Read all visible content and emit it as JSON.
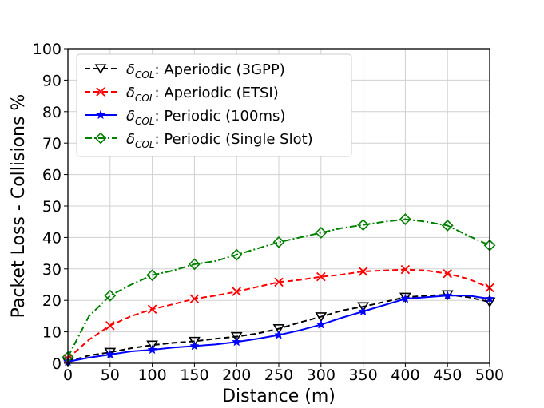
{
  "chart_data": {
    "type": "line",
    "title": "",
    "xlabel": "Distance (m)",
    "ylabel": "Packet Loss - Collisions %",
    "xlim": [
      0,
      500
    ],
    "ylim": [
      0,
      100
    ],
    "xticks": [
      0,
      50,
      100,
      150,
      200,
      250,
      300,
      350,
      400,
      450,
      500
    ],
    "yticks": [
      0,
      10,
      20,
      30,
      40,
      50,
      60,
      70,
      80,
      90,
      100
    ],
    "grid": true,
    "legend_position": "top-left",
    "series": [
      {
        "name": "Aperiodic (3GPP)",
        "legend_symbol": "δ",
        "legend_subscript": "COL",
        "color": "#000000",
        "line_style": "dashed",
        "marker": "triangle-down",
        "x": [
          0,
          25,
          50,
          75,
          100,
          125,
          150,
          175,
          200,
          225,
          250,
          275,
          300,
          325,
          350,
          375,
          400,
          425,
          450,
          475,
          500
        ],
        "values": [
          0.5,
          2.5,
          3.5,
          4.8,
          5.8,
          6.5,
          7.0,
          7.8,
          8.5,
          9.5,
          11.0,
          13.0,
          14.8,
          16.8,
          18.0,
          19.5,
          21.0,
          21.5,
          21.8,
          21.0,
          19.5
        ],
        "marker_x": [
          0,
          50,
          100,
          150,
          200,
          250,
          300,
          350,
          400,
          450,
          500
        ]
      },
      {
        "name": "Aperiodic (ETSI)",
        "legend_symbol": "δ",
        "legend_subscript": "COL",
        "color": "#ff0000",
        "line_style": "dashed",
        "marker": "x",
        "x": [
          0,
          25,
          50,
          75,
          100,
          125,
          150,
          175,
          200,
          225,
          250,
          275,
          300,
          325,
          350,
          375,
          400,
          425,
          450,
          475,
          500
        ],
        "values": [
          1.5,
          7.5,
          12.0,
          15.0,
          17.2,
          18.8,
          20.5,
          21.5,
          22.8,
          24.3,
          25.8,
          26.5,
          27.5,
          28.2,
          29.2,
          29.5,
          29.8,
          29.5,
          28.5,
          26.8,
          24.0
        ],
        "marker_x": [
          0,
          50,
          100,
          150,
          200,
          250,
          300,
          350,
          400,
          450,
          500
        ]
      },
      {
        "name": "Periodic (100ms)",
        "legend_symbol": "δ",
        "legend_subscript": "COL",
        "color": "#0000ff",
        "line_style": "solid",
        "marker": "star",
        "x": [
          0,
          25,
          50,
          75,
          100,
          125,
          150,
          175,
          200,
          225,
          250,
          275,
          300,
          325,
          350,
          375,
          400,
          425,
          450,
          475,
          500
        ],
        "values": [
          0.5,
          1.8,
          2.8,
          3.8,
          4.3,
          5.0,
          5.5,
          6.0,
          6.8,
          7.8,
          9.0,
          10.5,
          12.3,
          14.5,
          16.5,
          18.5,
          20.5,
          21.0,
          21.5,
          21.5,
          20.5
        ],
        "marker_x": [
          0,
          50,
          100,
          150,
          200,
          250,
          300,
          350,
          400,
          450,
          500
        ]
      },
      {
        "name": "Periodic (Single Slot)",
        "legend_symbol": "δ",
        "legend_subscript": "COL",
        "color": "#008000",
        "line_style": "dashdot",
        "marker": "diamond",
        "x": [
          0,
          25,
          50,
          75,
          100,
          125,
          150,
          175,
          200,
          225,
          250,
          275,
          300,
          325,
          350,
          375,
          400,
          425,
          450,
          475,
          500
        ],
        "values": [
          2.0,
          15.0,
          21.5,
          25.0,
          28.0,
          29.5,
          31.5,
          32.5,
          34.5,
          36.5,
          38.5,
          40.0,
          41.5,
          43.0,
          44.0,
          45.0,
          45.8,
          45.0,
          43.8,
          40.5,
          37.5
        ],
        "marker_x": [
          0,
          50,
          100,
          150,
          200,
          250,
          300,
          350,
          400,
          450,
          500
        ]
      }
    ]
  }
}
